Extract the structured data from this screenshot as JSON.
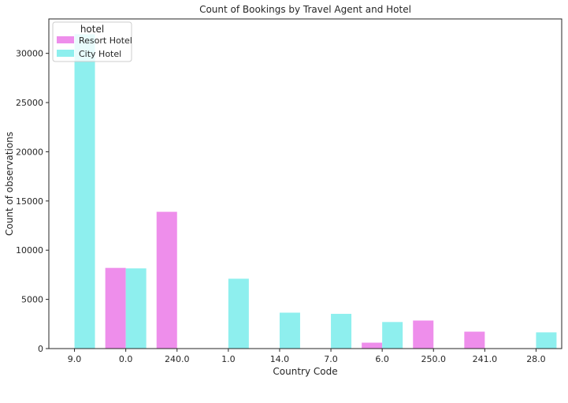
{
  "chart_data": {
    "type": "bar",
    "title": "Count of Bookings by Travel Agent and Hotel",
    "xlabel": "Country Code",
    "ylabel": "Count of observations",
    "categories": [
      "9.0",
      "0.0",
      "240.0",
      "1.0",
      "14.0",
      "7.0",
      "6.0",
      "250.0",
      "241.0",
      "28.0"
    ],
    "series": [
      {
        "name": "Resort Hotel",
        "color": "#ee8eeb",
        "values": [
          0,
          8200,
          13900,
          0,
          0,
          0,
          600,
          2850,
          1720,
          0
        ]
      },
      {
        "name": "City Hotel",
        "color": "#8eefee",
        "values": [
          31950,
          8150,
          0,
          7100,
          3650,
          3530,
          2700,
          0,
          0,
          1650
        ]
      }
    ],
    "ylim": [
      0,
      33500
    ],
    "yticks": [
      0,
      5000,
      10000,
      15000,
      20000,
      25000,
      30000
    ],
    "grid": false,
    "legend": {
      "title": "hotel",
      "placement": "top-left"
    }
  }
}
